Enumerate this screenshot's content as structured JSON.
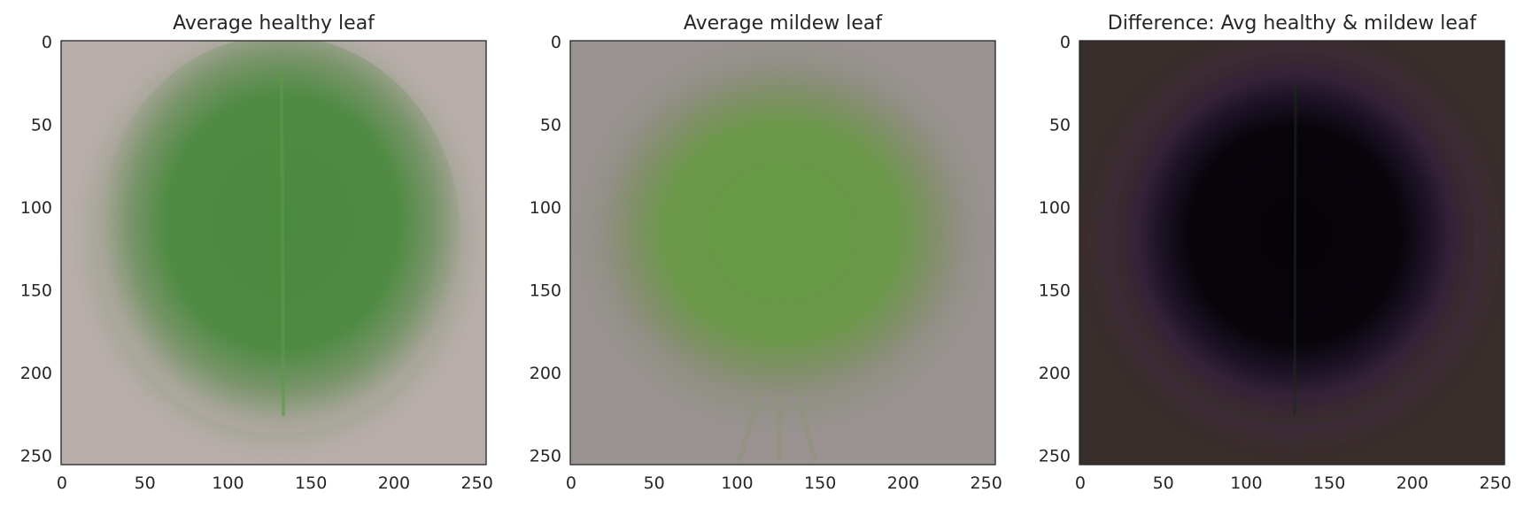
{
  "chart_data": [
    {
      "type": "heatmap",
      "title": "Average healthy leaf",
      "xlabel": "",
      "ylabel": "",
      "xlim": [
        0,
        255
      ],
      "ylim": [
        255,
        0
      ],
      "xticks": [
        0,
        50,
        100,
        150,
        200,
        250
      ],
      "yticks": [
        0,
        50,
        100,
        150,
        200,
        250
      ],
      "grid": false,
      "background_color": "#b9aeac",
      "leaf_color": "#4a8a3e",
      "edge_color": "#8a9a78"
    },
    {
      "type": "heatmap",
      "title": "Average mildew leaf",
      "xlabel": "",
      "ylabel": "",
      "xlim": [
        0,
        255
      ],
      "ylim": [
        255,
        0
      ],
      "xticks": [
        0,
        50,
        100,
        150,
        200,
        250
      ],
      "yticks": [
        0,
        50,
        100,
        150,
        200,
        250
      ],
      "grid": false,
      "background_color": "#9a9392",
      "leaf_color": "#669a46",
      "edge_color": "#8a927a"
    },
    {
      "type": "heatmap",
      "title": "Difference: Avg healthy & mildew leaf",
      "xlabel": "",
      "ylabel": "",
      "xlim": [
        0,
        255
      ],
      "ylim": [
        255,
        0
      ],
      "xticks": [
        0,
        50,
        100,
        150,
        200,
        250
      ],
      "yticks": [
        0,
        50,
        100,
        150,
        200,
        250
      ],
      "grid": false,
      "background_color": "#3a2e2c",
      "leaf_color": "#050308",
      "edge_color": "#4a2e5a"
    }
  ]
}
